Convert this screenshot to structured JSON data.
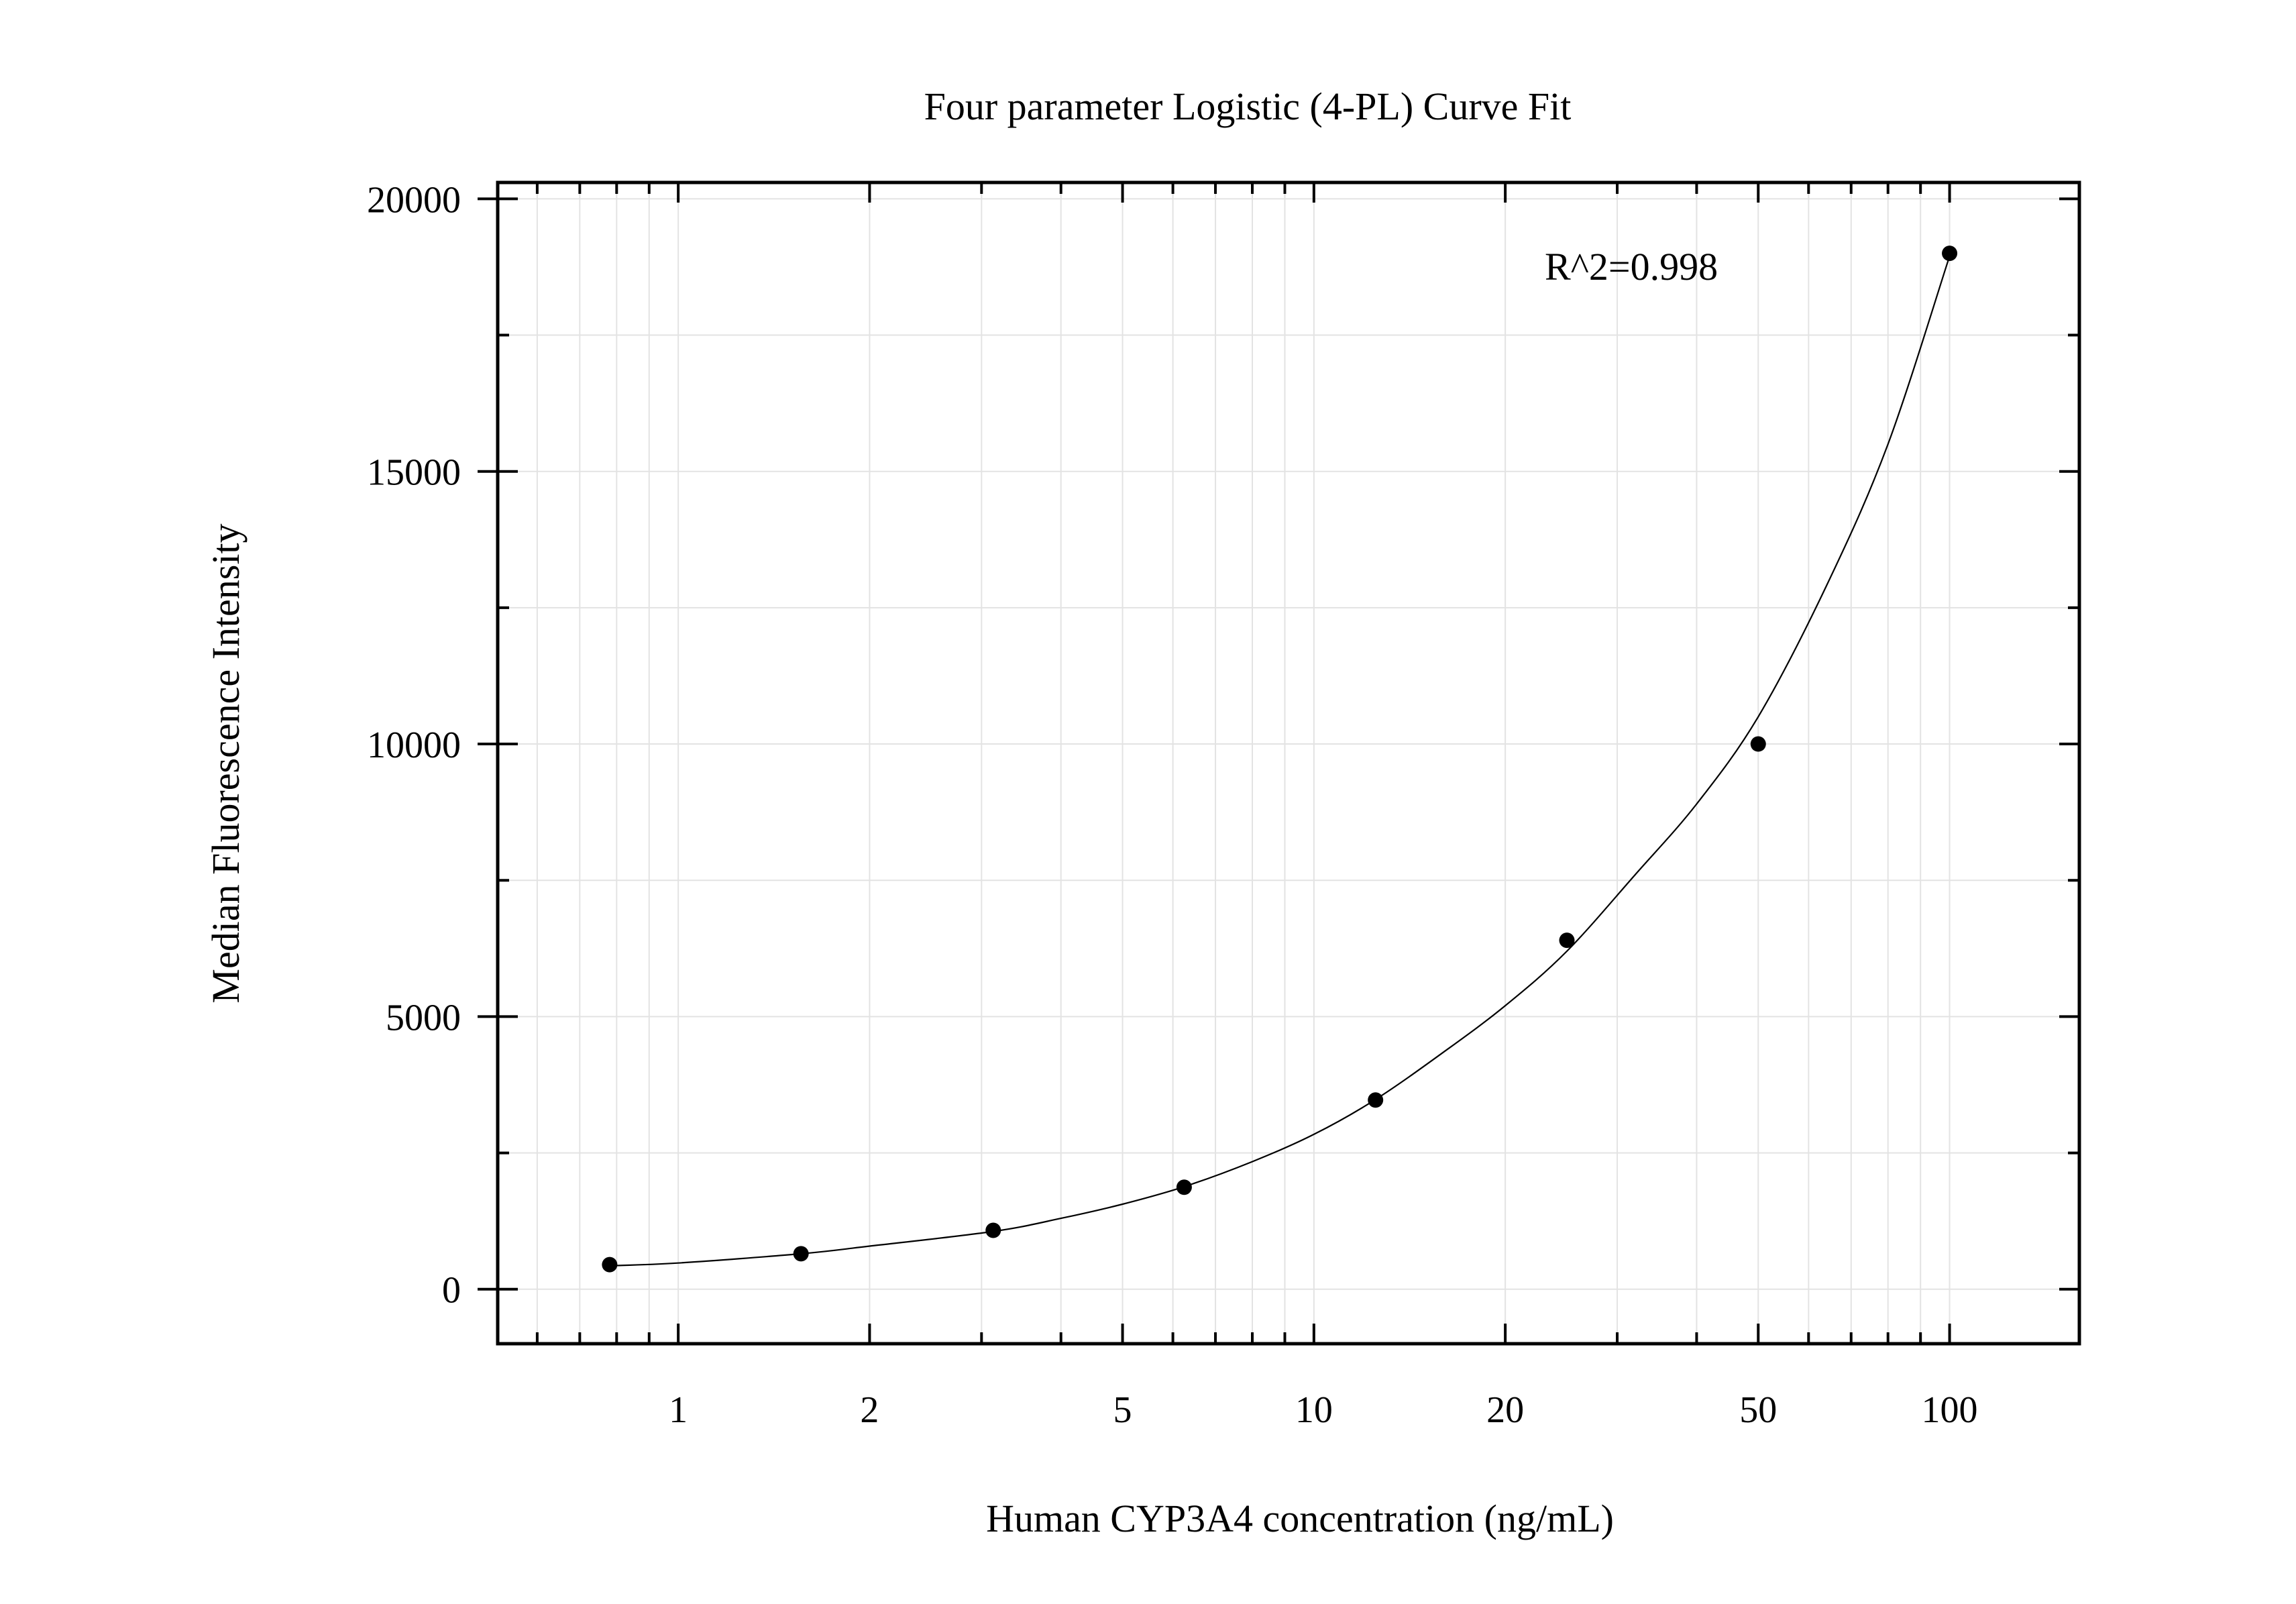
{
  "chart_data": {
    "type": "scatter",
    "title": "Four parameter Logistic (4-PL) Curve Fit",
    "xlabel": "Human CYP3A4 concentration (ng/mL)",
    "ylabel": "Median Fluorescence Intensity",
    "x_scale": "log",
    "xlim": [
      0.52,
      160
    ],
    "ylim": [
      -1000,
      20300
    ],
    "x_ticks": [
      {
        "value": 1,
        "label": "1"
      },
      {
        "value": 2,
        "label": "2"
      },
      {
        "value": 5,
        "label": "5"
      },
      {
        "value": 10,
        "label": "10"
      },
      {
        "value": 20,
        "label": "20"
      },
      {
        "value": 50,
        "label": "50"
      },
      {
        "value": 100,
        "label": "100"
      }
    ],
    "y_ticks": [
      {
        "value": 0,
        "label": "0"
      },
      {
        "value": 5000,
        "label": "5000"
      },
      {
        "value": 10000,
        "label": "10000"
      },
      {
        "value": 15000,
        "label": "15000"
      },
      {
        "value": 20000,
        "label": "20000"
      }
    ],
    "grid": true,
    "annotation": "R^2=0.998",
    "series": [
      {
        "kind": "points",
        "color": "#000000",
        "x": [
          0.78,
          1.56,
          3.13,
          6.25,
          12.5,
          25,
          50,
          100
        ],
        "y": [
          450,
          650,
          1080,
          1870,
          3470,
          6400,
          10000,
          19000
        ]
      },
      {
        "kind": "fit-curve",
        "color": "#000000",
        "x": [
          0.78,
          1,
          1.56,
          2,
          3.13,
          4,
          5,
          6.25,
          8,
          10,
          12.5,
          16,
          20,
          25,
          32,
          40,
          50,
          64,
          80,
          100
        ],
        "y": [
          430,
          480,
          650,
          790,
          1060,
          1300,
          1560,
          1880,
          2340,
          2840,
          3480,
          4350,
          5200,
          6200,
          7600,
          8900,
          10500,
          12900,
          15500,
          18950
        ]
      }
    ]
  }
}
